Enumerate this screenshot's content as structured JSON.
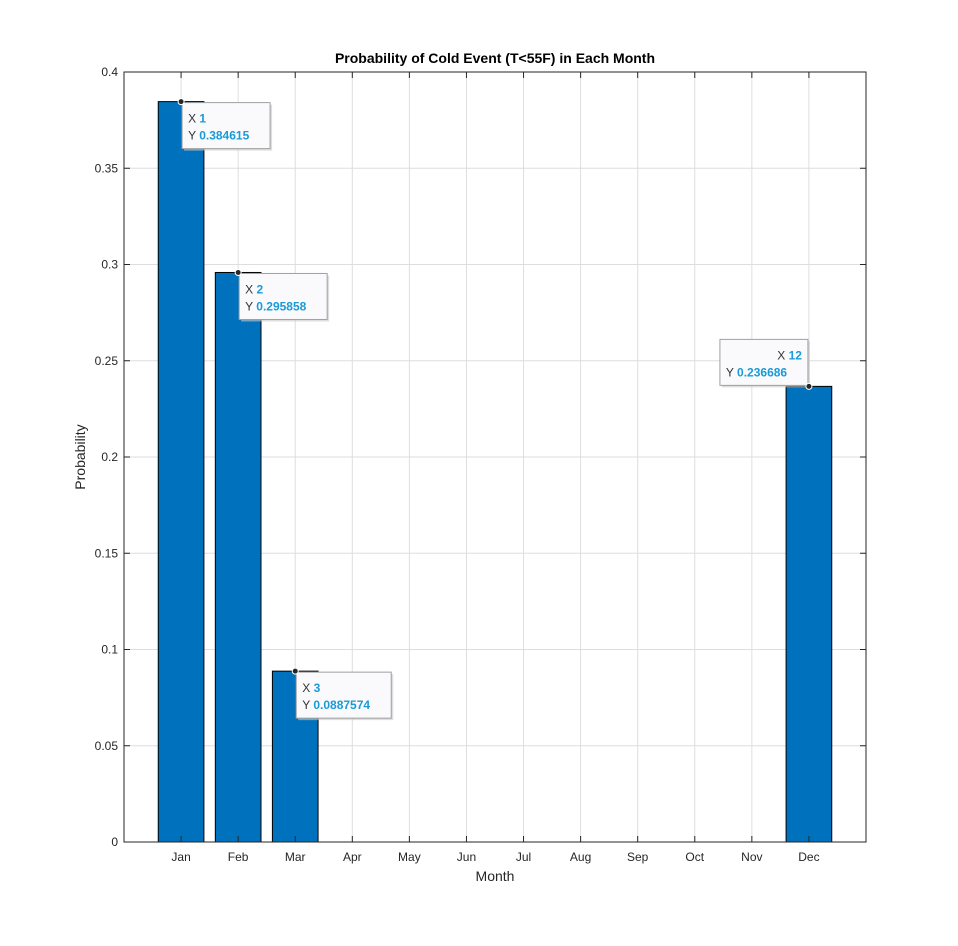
{
  "chart_data": {
    "type": "bar",
    "title": "Probability of Cold Event (T<55F) in Each Month",
    "xlabel": "Month",
    "ylabel": "Probability",
    "categories": [
      "Jan",
      "Feb",
      "Mar",
      "Apr",
      "May",
      "Jun",
      "Jul",
      "Aug",
      "Sep",
      "Oct",
      "Nov",
      "Dec"
    ],
    "values": [
      0.384615,
      0.295858,
      0.0887574,
      0,
      0,
      0,
      0,
      0,
      0,
      0,
      0,
      0.236686
    ],
    "ylim": [
      0,
      0.4
    ],
    "yticks": [
      "0",
      "0.05",
      "0.1",
      "0.15",
      "0.2",
      "0.25",
      "0.3",
      "0.35",
      "0.4"
    ],
    "grid": true,
    "bar_color": "#0072BD",
    "datatips": [
      {
        "x_label": "X",
        "x_value": "1",
        "y_label": "Y",
        "y_value": "0.384615",
        "index": 0,
        "side": "right"
      },
      {
        "x_label": "X",
        "x_value": "2",
        "y_label": "Y",
        "y_value": "0.295858",
        "index": 1,
        "side": "right"
      },
      {
        "x_label": "X",
        "x_value": "3",
        "y_label": "Y",
        "y_value": "0.0887574",
        "index": 2,
        "side": "right"
      },
      {
        "x_label": "X",
        "x_value": "12",
        "y_label": "Y",
        "y_value": "0.236686",
        "index": 11,
        "side": "left"
      }
    ]
  }
}
